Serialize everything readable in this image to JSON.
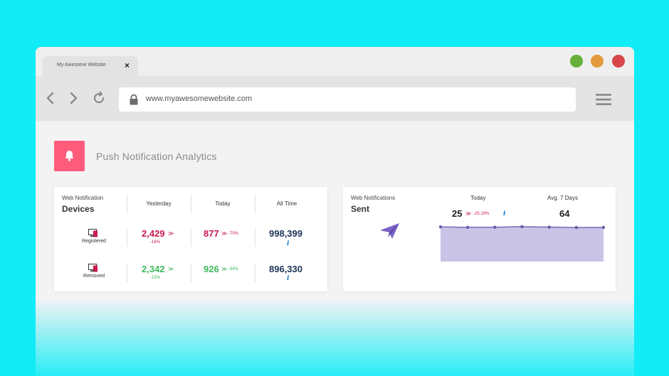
{
  "browser": {
    "tab_title": "My Awesome Website",
    "tab_close": "×",
    "url": "www.myawesomewebsite.com",
    "window_dots": {
      "green": "#66b03a",
      "orange": "#e29a3c",
      "red": "#d9474b"
    }
  },
  "header": {
    "title": "Push Notification Analytics",
    "accent": "#ff5b7b",
    "icon": "bell-icon"
  },
  "devices_card": {
    "kicker": "Web Notification",
    "heading": "Devices",
    "columns": [
      "Yesterday",
      "Today",
      "All Time"
    ],
    "rows": [
      {
        "label": "Registered",
        "yesterday": "2,429",
        "yesterday_change": "-16%",
        "today": "877",
        "today_change": "-70%",
        "all_time": "998,399",
        "info": "i"
      },
      {
        "label": "Removed",
        "yesterday": "2,342",
        "yesterday_change": "-15%",
        "today": "926",
        "today_change": "-64%",
        "all_time": "896,330",
        "info": "i"
      }
    ]
  },
  "sent_card": {
    "kicker": "Web Notifications",
    "heading": "Sent",
    "today_label": "Today",
    "avg_label": "Avg. 7 Days",
    "today_value": "25",
    "today_change": "-25.19%",
    "avg_value": "64",
    "info": "i",
    "icon": "paper-plane-icon"
  },
  "chart_data": {
    "type": "area",
    "title": "",
    "xlabel": "",
    "ylabel": "",
    "x": [
      1,
      2,
      3,
      4,
      5,
      6,
      7
    ],
    "values": [
      64,
      60,
      61,
      66,
      62,
      58,
      59
    ],
    "ylim": [
      0,
      100
    ],
    "grid": false,
    "fill_color": "#c9c3e6",
    "line_color": "#7a68b8"
  }
}
